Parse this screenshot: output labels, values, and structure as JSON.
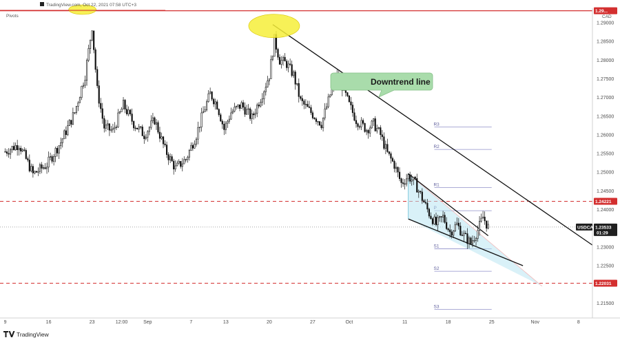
{
  "header": {
    "source_text": "TradingView.com, Oct 22, 2021 07:58 UTC+3",
    "indicator_label": "Pivots"
  },
  "footer": {
    "logo_text": "TradingView"
  },
  "chart_data": {
    "type": "candlestick",
    "symbol": "USDCAD",
    "currency": "CAD",
    "y_ticks": [
      1.29,
      1.285,
      1.28,
      1.275,
      1.27,
      1.265,
      1.26,
      1.255,
      1.25,
      1.245,
      1.24,
      1.235,
      1.23,
      1.225,
      1.22,
      1.215
    ],
    "y_tick_labels": [
      "1.29000",
      "1.28500",
      "1.28000",
      "1.27500",
      "1.27000",
      "1.26500",
      "1.26000",
      "1.25500",
      "1.25000",
      "1.24500",
      "1.24000",
      "1.23500",
      "1.23000",
      "1.22500",
      "1.22000",
      "1.21500"
    ],
    "ylim": [
      1.211,
      1.2935
    ],
    "x_ticks": [
      {
        "label": "9",
        "idx": 0
      },
      {
        "label": "16",
        "idx": 25
      },
      {
        "label": "23",
        "idx": 50
      },
      {
        "label": "12:00",
        "idx": 67
      },
      {
        "label": "Sep",
        "idx": 82
      },
      {
        "label": "7",
        "idx": 107
      },
      {
        "label": "13",
        "idx": 127
      },
      {
        "label": "20",
        "idx": 152
      },
      {
        "label": "27",
        "idx": 177
      },
      {
        "label": "Oct",
        "idx": 198
      },
      {
        "label": "11",
        "idx": 230
      },
      {
        "label": "18",
        "idx": 255
      },
      {
        "label": "25",
        "idx": 280
      },
      {
        "label": "Nov",
        "idx": 305
      },
      {
        "label": "8",
        "idx": 330
      }
    ],
    "x_range": [
      -1,
      338
    ],
    "horizontal_levels": [
      {
        "value": 1.2932,
        "style": "solid",
        "color": "#d32f2f",
        "label": "1.29..."
      },
      {
        "value": 1.24221,
        "style": "dashed",
        "color": "#d32f2f",
        "label": "1.24221"
      },
      {
        "value": 1.22031,
        "style": "dashed",
        "color": "#d32f2f",
        "label": "1.22031"
      }
    ],
    "pivots": [
      {
        "name": "R3",
        "value": 1.2621
      },
      {
        "name": "R2",
        "value": 1.2561
      },
      {
        "name": "R1",
        "value": 1.2459
      },
      {
        "name": "P",
        "value": 1.2397
      },
      {
        "name": "S1",
        "value": 1.2295
      },
      {
        "name": "S2",
        "value": 1.2235
      },
      {
        "name": "S3",
        "value": 1.2133
      }
    ],
    "pivot_range_idx": [
      247,
      280
    ],
    "current_price": {
      "label": "USDCAD",
      "value_text": "1.23533",
      "countdown": "01:29",
      "value": 1.23533
    },
    "annotations": [
      {
        "text": "Downtrend line",
        "type": "callout"
      }
    ],
    "keypoints": [
      [
        0,
        1.2555
      ],
      [
        8,
        1.2575
      ],
      [
        16,
        1.2495
      ],
      [
        24,
        1.252
      ],
      [
        32,
        1.258
      ],
      [
        40,
        1.266
      ],
      [
        46,
        1.276
      ],
      [
        50,
        1.289
      ],
      [
        53,
        1.272
      ],
      [
        57,
        1.262
      ],
      [
        62,
        1.261
      ],
      [
        68,
        1.268
      ],
      [
        74,
        1.263
      ],
      [
        80,
        1.26
      ],
      [
        86,
        1.264
      ],
      [
        92,
        1.256
      ],
      [
        98,
        1.251
      ],
      [
        104,
        1.2535
      ],
      [
        110,
        1.26
      ],
      [
        114,
        1.266
      ],
      [
        118,
        1.271
      ],
      [
        122,
        1.268
      ],
      [
        126,
        1.2615
      ],
      [
        130,
        1.266
      ],
      [
        136,
        1.268
      ],
      [
        142,
        1.2645
      ],
      [
        148,
        1.271
      ],
      [
        152,
        1.276
      ],
      [
        155,
        1.2855
      ],
      [
        158,
        1.28
      ],
      [
        162,
        1.279
      ],
      [
        166,
        1.276
      ],
      [
        170,
        1.269
      ],
      [
        176,
        1.266
      ],
      [
        182,
        1.263
      ],
      [
        186,
        1.269
      ],
      [
        190,
        1.276
      ],
      [
        194,
        1.273
      ],
      [
        198,
        1.268
      ],
      [
        202,
        1.264
      ],
      [
        208,
        1.2615
      ],
      [
        212,
        1.263
      ],
      [
        216,
        1.26
      ],
      [
        220,
        1.255
      ],
      [
        224,
        1.252
      ],
      [
        228,
        1.247
      ],
      [
        232,
        1.249
      ],
      [
        236,
        1.247
      ],
      [
        240,
        1.243
      ],
      [
        244,
        1.239
      ],
      [
        248,
        1.236
      ],
      [
        252,
        1.238
      ],
      [
        256,
        1.234
      ],
      [
        260,
        1.236
      ],
      [
        264,
        1.233
      ],
      [
        268,
        1.231
      ],
      [
        272,
        1.2345
      ],
      [
        275,
        1.238
      ],
      [
        278,
        1.2353
      ]
    ],
    "downtrend_line": [
      [
        154,
        1.2895
      ],
      [
        338,
        1.2305
      ]
    ],
    "wedge": {
      "upper": [
        [
          232,
          1.2496
        ],
        [
          278,
          1.233
        ]
      ],
      "lower": [
        [
          232,
          1.2375
        ],
        [
          298,
          1.225
        ]
      ],
      "apex": [
        309,
        1.2195
      ]
    }
  }
}
